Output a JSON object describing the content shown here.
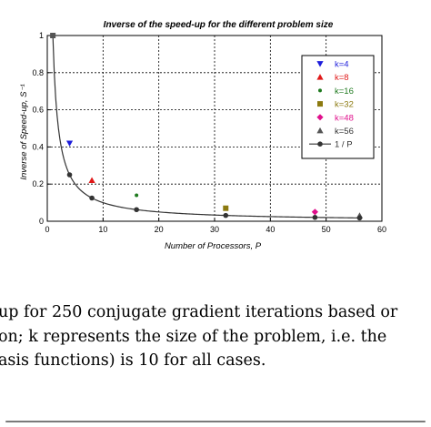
{
  "chart_data": {
    "type": "scatter",
    "title": "Inverse of the speed-up for the different problem size",
    "xlabel": "Number of Processors, P",
    "ylabel": "Inverse of Speed-up, S⁻¹",
    "xlim": [
      0,
      60
    ],
    "ylim": [
      0,
      1
    ],
    "xticks": [
      0,
      10,
      20,
      30,
      40,
      50,
      60
    ],
    "yticks": [
      0,
      0.2,
      0.4,
      0.6,
      0.8,
      1
    ],
    "grid": true,
    "legend_position": "top-right",
    "series": [
      {
        "name": "k=4",
        "marker": "triangle-down",
        "color": "#1d1ddb",
        "points": [
          [
            4,
            0.42
          ]
        ]
      },
      {
        "name": "k=8",
        "marker": "triangle-up",
        "color": "#e01818",
        "points": [
          [
            8,
            0.22
          ]
        ]
      },
      {
        "name": "k=16",
        "marker": "dot",
        "color": "#1f7a1f",
        "points": [
          [
            16,
            0.14
          ]
        ]
      },
      {
        "name": "k=32",
        "marker": "square",
        "color": "#8c7a10",
        "points": [
          [
            32,
            0.07
          ]
        ]
      },
      {
        "name": "k=48",
        "marker": "diamond",
        "color": "#e0108c",
        "points": [
          [
            48,
            0.05
          ]
        ]
      },
      {
        "name": "k=56",
        "marker": "triangle-up",
        "color": "#555555",
        "points": [
          [
            56,
            0.03
          ]
        ]
      },
      {
        "name": "1 / P",
        "marker": "dot-line",
        "color": "#333333",
        "points": [
          [
            1,
            1
          ],
          [
            4,
            0.25
          ],
          [
            8,
            0.125
          ],
          [
            16,
            0.0625
          ],
          [
            32,
            0.03125
          ],
          [
            48,
            0.02083
          ],
          [
            56,
            0.01786
          ]
        ]
      }
    ]
  },
  "caption": {
    "lines": [
      "up for 250 conjugate gradient iterations based or",
      "on; k represents the size of the problem, i.e.  the",
      "asis functions) is 10 for all cases."
    ]
  }
}
